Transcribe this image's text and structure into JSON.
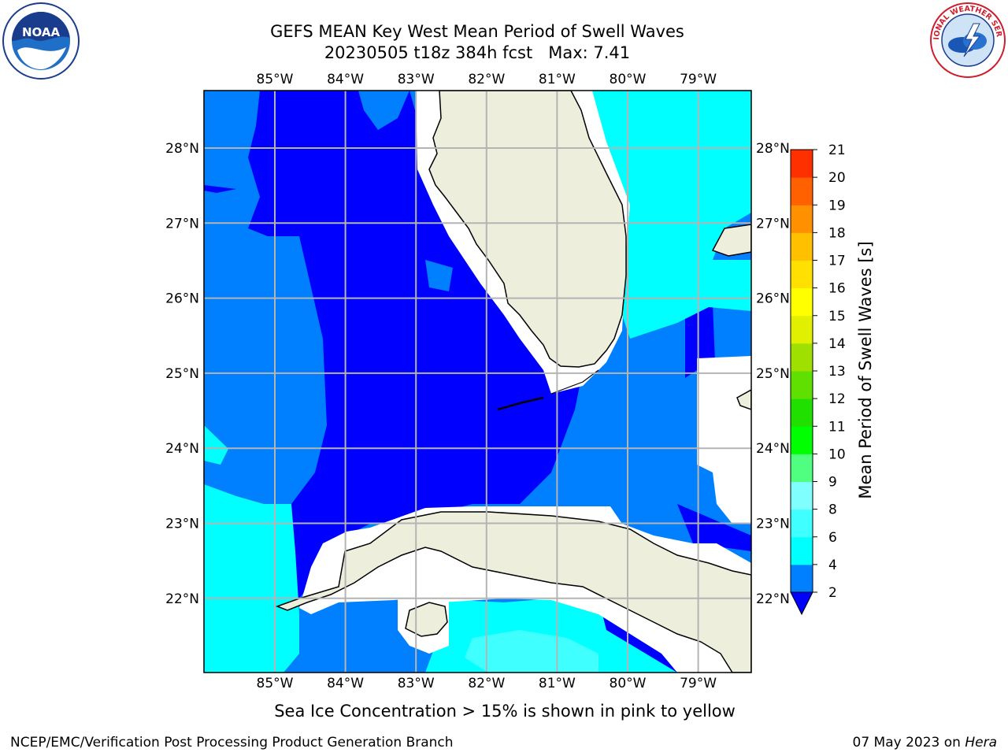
{
  "title": {
    "line1": "GEFS MEAN Key West Mean Period of Swell Waves",
    "line2": "20230505 t18z 384h fcst   Max: 7.41"
  },
  "logos": {
    "noaa_text": "NOAA",
    "noaa_ring": "NATIONAL OCEANIC AND ATMOSPHERIC ADMINISTRATION · U.S. DEPARTMENT OF COMMERCE",
    "nws_ring": "NATIONAL WEATHER SERVICE"
  },
  "map": {
    "lon_labels": [
      "85°W",
      "84°W",
      "83°W",
      "82°W",
      "81°W",
      "80°W",
      "79°W"
    ],
    "lat_labels": [
      "28°N",
      "27°N",
      "26°N",
      "25°N",
      "24°N",
      "23°N",
      "22°N"
    ],
    "land_color": "#eeeedc",
    "grid_color": "#b4b4b4"
  },
  "colorbar": {
    "label": "Mean Period of Swell Waves [s]",
    "ticks": [
      "2",
      "4",
      "6",
      "8",
      "9",
      "10",
      "11",
      "12",
      "13",
      "14",
      "15",
      "16",
      "17",
      "18",
      "19",
      "20",
      "21"
    ],
    "colors": [
      "#0000ff",
      "#0080ff",
      "#00ffff",
      "#40ffff",
      "#80ffff",
      "#50ff80",
      "#00ff00",
      "#20e000",
      "#60e000",
      "#a0e000",
      "#e0f000",
      "#ffff00",
      "#ffe000",
      "#ffc000",
      "#ff9000",
      "#ff6000",
      "#ff3000",
      "#ff0000"
    ]
  },
  "caption": "Sea Ice Concentration > 15% is shown in pink to yellow",
  "footer": {
    "left": "NCEP/EMC/Verification Post Processing Product Generation Branch",
    "date": "07 May 2023 on ",
    "host": "Hera"
  }
}
